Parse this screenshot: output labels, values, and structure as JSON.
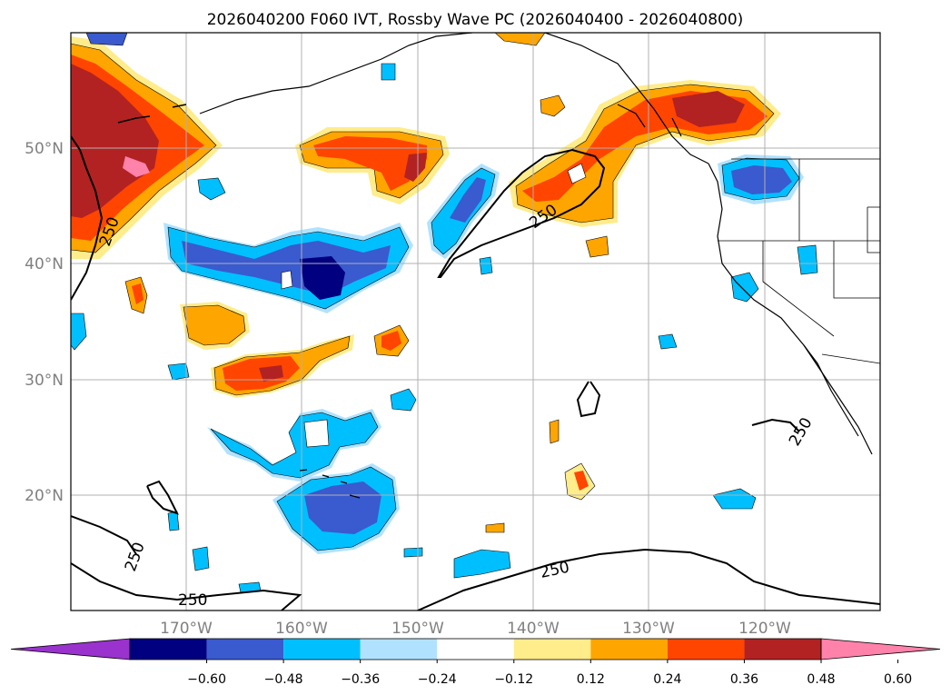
{
  "title": "2026040200 F060 IVT, Rossby Wave PC (2026040400 - 2026040800)",
  "map": {
    "lat_labels": [
      "50°N",
      "40°N",
      "30°N",
      "20°N"
    ],
    "lon_labels": [
      "170°W",
      "160°W",
      "150°W",
      "140°W",
      "130°W",
      "120°W"
    ],
    "contour_label": "250"
  },
  "colorbar": {
    "colors": [
      "#9a32cd",
      "#000080",
      "#3a5acf",
      "#00bfff",
      "#b0e2ff",
      "#ffffff",
      "#ffec8b",
      "#ffa500",
      "#ff4500",
      "#b22222",
      "#ff82ab"
    ],
    "tick_labels": [
      "−0.60",
      "−0.48",
      "−0.36",
      "−0.24",
      "−0.12",
      "0.12",
      "0.24",
      "0.36",
      "0.48",
      "0.60"
    ]
  },
  "colors": {
    "grid": "#b0b0b0",
    "axis_label": "#808080",
    "contour": "#000000"
  }
}
